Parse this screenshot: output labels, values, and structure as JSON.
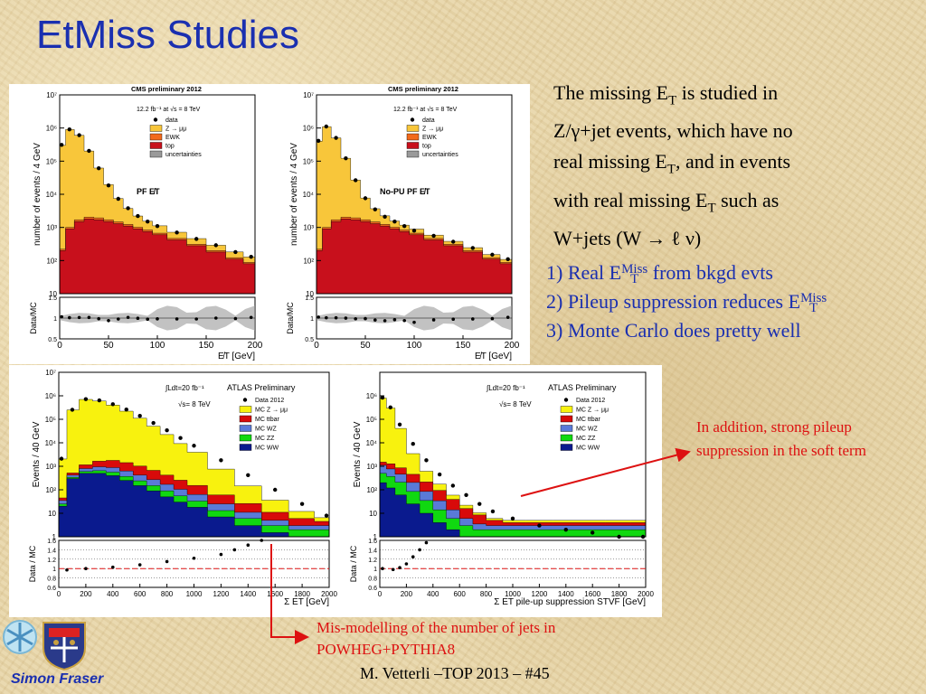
{
  "slide": {
    "title": "EtMiss Studies",
    "intro": {
      "l1a": "The missing E",
      "l1b": "T",
      "l1c": " is studied in",
      "l2": "Z/γ+jet events, which have no",
      "l3a": "real missing E",
      "l3b": "T",
      "l3c": ", and in events",
      "l4a": "with real missing E",
      "l4b": "T",
      "l4c": " such as",
      "l5": "W+jets (W → ℓ ν)"
    },
    "points": {
      "p1a": "1) Real E",
      "p1sup": "Miss",
      "p1sub": "T",
      "p1c": " from bkgd evts",
      "p2a": "2) Pileup suppression reduces E",
      "p2sup": "Miss",
      "p2sub": "T",
      "p3": "3) Monte Carlo does pretty well"
    },
    "note_top": "In addition, strong pileup suppression in the soft term",
    "note_bottom": "Mis-modelling of the number of jets in POWHEG+PYTHIA8",
    "footer": "M. Vetterli –TOP 2013 – #45",
    "author": "Simon Fraser"
  },
  "colors": {
    "title": "#1a2fb0",
    "annotation": "#dd1111",
    "cms_zmm": "#f8c63a",
    "cms_ewk": "#f26a1c",
    "cms_top": "#c8101c",
    "cms_unc": "#9a9a9a",
    "atlas_z": "#f8f20e",
    "atlas_tt": "#d80a0a",
    "atlas_wz": "#5a7ad8",
    "atlas_zz": "#10d810",
    "atlas_ww": "#0a1a8e"
  },
  "chart_data": [
    {
      "type": "area",
      "header": "CMS preliminary 2012",
      "lumi": "12.2 fb⁻¹  at  √s = 8 TeV",
      "label": "PF E̸T",
      "ylabel": "number of events / 4 GeV",
      "xlabel": "E̸T [GeV]",
      "ratio_ylabel": "Data/MC",
      "yscale": "log",
      "ylim": [
        10,
        10000000.0
      ],
      "xlim": [
        0,
        200
      ],
      "x_ticks": [
        "0",
        "50",
        "100",
        "150",
        "200"
      ],
      "y_ticks": [
        "10",
        "10²",
        "10³",
        "10⁴",
        "10⁵",
        "10⁶",
        "10⁷"
      ],
      "ratio_ylim": [
        0.5,
        1.5
      ],
      "ratio_ticks": [
        "0.5",
        "1",
        "1.5"
      ],
      "legend": [
        "data",
        "Z → μμ",
        "EWK",
        "top",
        "uncertainties"
      ],
      "x": [
        2,
        10,
        20,
        30,
        40,
        50,
        60,
        70,
        80,
        90,
        100,
        120,
        140,
        160,
        180,
        196
      ],
      "series": [
        {
          "name": "top",
          "values": [
            200,
            900,
            1500,
            1800,
            1700,
            1500,
            1300,
            1100,
            900,
            750,
            600,
            420,
            280,
            180,
            110,
            80
          ]
        },
        {
          "name": "EWK",
          "values": [
            20,
            100,
            200,
            250,
            240,
            200,
            170,
            140,
            110,
            90,
            70,
            45,
            30,
            20,
            12,
            8
          ]
        },
        {
          "name": "Z → μμ",
          "values": [
            300000,
            900000,
            600000,
            200000,
            60000,
            18000,
            6000,
            2500,
            1200,
            700,
            450,
            250,
            150,
            90,
            60,
            40
          ]
        },
        {
          "name": "data",
          "values": [
            310000,
            910000,
            610000,
            205000,
            61000,
            18500,
            7300,
            3800,
            2200,
            1500,
            1100,
            700,
            450,
            290,
            180,
            130
          ]
        }
      ]
    },
    {
      "type": "area",
      "header": "CMS preliminary 2012",
      "lumi": "12.2 fb⁻¹  at  √s = 8 TeV",
      "label": "No-PU PF E̸T",
      "ylabel": "number of events / 4 GeV",
      "xlabel": "E̸T [GeV]",
      "ratio_ylabel": "Data/MC",
      "yscale": "log",
      "ylim": [
        10,
        10000000.0
      ],
      "xlim": [
        0,
        200
      ],
      "x_ticks": [
        "0",
        "50",
        "100",
        "150",
        "200"
      ],
      "y_ticks": [
        "10",
        "10²",
        "10³",
        "10⁴",
        "10⁵",
        "10⁶",
        "10⁷"
      ],
      "ratio_ylim": [
        0.5,
        1.5
      ],
      "ratio_ticks": [
        "0.5",
        "1",
        "1.5"
      ],
      "legend": [
        "data",
        "Z → μμ",
        "EWK",
        "top",
        "uncertainties"
      ],
      "x": [
        2,
        10,
        20,
        30,
        40,
        50,
        60,
        70,
        80,
        90,
        100,
        120,
        140,
        160,
        180,
        196
      ],
      "series": [
        {
          "name": "top",
          "values": [
            200,
            900,
            1500,
            1800,
            1700,
            1500,
            1300,
            1100,
            900,
            750,
            600,
            420,
            280,
            180,
            110,
            80
          ]
        },
        {
          "name": "EWK",
          "values": [
            20,
            100,
            200,
            250,
            240,
            200,
            170,
            140,
            110,
            90,
            70,
            45,
            30,
            20,
            12,
            8
          ]
        },
        {
          "name": "Z → μμ",
          "values": [
            400000,
            1100000,
            500000,
            120000,
            25000,
            6000,
            2200,
            1000,
            550,
            330,
            220,
            120,
            70,
            45,
            30,
            20
          ]
        },
        {
          "name": "data",
          "values": [
            410000,
            1110000,
            505000,
            122000,
            26500,
            7600,
            3500,
            2100,
            1500,
            1100,
            800,
            560,
            370,
            240,
            150,
            110
          ]
        }
      ]
    },
    {
      "type": "area",
      "header": "ATLAS Preliminary",
      "lumi": "∫Ldt=20 fb⁻¹",
      "energy": "√s= 8 TeV",
      "ylabel": "Events / 40 GeV",
      "xlabel": "Σ ET [GeV]",
      "ratio_ylabel": "Data / MC",
      "yscale": "log",
      "ylim": [
        1,
        10000000.0
      ],
      "xlim": [
        0,
        2000
      ],
      "x_ticks": [
        "0",
        "200",
        "400",
        "600",
        "800",
        "1000",
        "1200",
        "1400",
        "1600",
        "1800",
        "2000"
      ],
      "y_ticks": [
        "1",
        "10",
        "10²",
        "10³",
        "10⁴",
        "10⁵",
        "10⁶",
        "10⁷"
      ],
      "ratio_ylim": [
        0.6,
        1.6
      ],
      "ratio_ticks": [
        "0.6",
        "0.8",
        "1",
        "1.2",
        "1.4",
        "1.6"
      ],
      "legend": [
        "Data 2012",
        "MC Z → μμ",
        "MC ttbar",
        "MC WZ",
        "MC ZZ",
        "MC WW"
      ],
      "x": [
        20,
        100,
        200,
        300,
        400,
        500,
        600,
        700,
        800,
        900,
        1000,
        1200,
        1400,
        1600,
        1800,
        1980
      ],
      "series": [
        {
          "name": "MC WW",
          "values": [
            20,
            300,
            500,
            500,
            400,
            250,
            150,
            90,
            50,
            30,
            18,
            7,
            3,
            1.5,
            1,
            1
          ]
        },
        {
          "name": "MC ZZ",
          "values": [
            5,
            40,
            100,
            150,
            160,
            120,
            90,
            60,
            40,
            25,
            15,
            6,
            3,
            1.5,
            1,
            1
          ]
        },
        {
          "name": "MC WZ",
          "values": [
            10,
            80,
            200,
            300,
            320,
            260,
            180,
            120,
            80,
            50,
            30,
            12,
            5,
            2,
            1,
            1
          ]
        },
        {
          "name": "MC ttbar",
          "values": [
            10,
            100,
            350,
            700,
            900,
            800,
            600,
            400,
            250,
            150,
            90,
            35,
            15,
            6,
            3,
            1.5
          ]
        },
        {
          "name": "MC Z → μμ",
          "values": [
            2000,
            250000,
            700000,
            600000,
            400000,
            220000,
            110000,
            50000,
            22000,
            9000,
            3800,
            700,
            120,
            25,
            6,
            2
          ]
        },
        {
          "name": "Data 2012",
          "values": [
            2100,
            255000,
            720000,
            640000,
            440000,
            260000,
            140000,
            70000,
            34000,
            16000,
            7500,
            1800,
            420,
            100,
            25,
            8
          ]
        }
      ],
      "ratio": {
        "x": [
          60,
          200,
          400,
          600,
          800,
          1000,
          1200,
          1300,
          1400,
          1500
        ],
        "values": [
          0.97,
          1.0,
          1.03,
          1.08,
          1.15,
          1.22,
          1.3,
          1.4,
          1.5,
          1.6
        ]
      }
    },
    {
      "type": "area",
      "header": "ATLAS Preliminary",
      "lumi": "∫Ldt=20 fb⁻¹",
      "energy": "√s= 8 TeV",
      "ylabel": "Events / 40 GeV",
      "xlabel": "Σ ET pile-up suppression STVF [GeV]",
      "ratio_ylabel": "Data / MC",
      "yscale": "log",
      "ylim": [
        1,
        10000000.0
      ],
      "xlim": [
        0,
        2000
      ],
      "x_ticks": [
        "0",
        "200",
        "400",
        "600",
        "800",
        "1000",
        "1200",
        "1400",
        "1600",
        "1800",
        "2000"
      ],
      "y_ticks": [
        "1",
        "10",
        "10²",
        "10³",
        "10⁴",
        "10⁵",
        "10⁶"
      ],
      "ratio_ylim": [
        0.6,
        1.6
      ],
      "ratio_ticks": [
        "0.6",
        "0.8",
        "1",
        "1.2",
        "1.4",
        "1.6"
      ],
      "legend": [
        "Data 2012",
        "MC Z → μμ",
        "MC ttbar",
        "MC WZ",
        "MC ZZ",
        "MC WW"
      ],
      "x": [
        20,
        80,
        150,
        250,
        350,
        450,
        550,
        650,
        750,
        850,
        1000,
        1200,
        1400,
        1600,
        1800,
        1980
      ],
      "series": [
        {
          "name": "MC WW",
          "values": [
            200,
            120,
            60,
            25,
            10,
            4,
            2,
            1,
            1,
            1,
            1,
            1,
            1,
            1,
            1,
            1
          ]
        },
        {
          "name": "MC ZZ",
          "values": [
            300,
            250,
            150,
            60,
            25,
            10,
            4,
            2,
            1,
            1,
            1,
            1,
            1,
            1,
            1,
            1
          ]
        },
        {
          "name": "MC WZ",
          "values": [
            600,
            400,
            250,
            120,
            50,
            20,
            8,
            3,
            1.5,
            1,
            1,
            1,
            1,
            1,
            1,
            1
          ]
        },
        {
          "name": "MC ttbar",
          "values": [
            400,
            500,
            400,
            250,
            130,
            60,
            25,
            10,
            5,
            2,
            1,
            1,
            1,
            1,
            1,
            1
          ]
        },
        {
          "name": "MC Z → μμ",
          "values": [
            800000,
            300000,
            40000,
            3000,
            400,
            80,
            20,
            6,
            2,
            1,
            1,
            1,
            1,
            1,
            1,
            1
          ]
        },
        {
          "name": "Data 2012",
          "values": [
            830000,
            320000,
            60000,
            9000,
            1800,
            450,
            150,
            60,
            25,
            12,
            6,
            3,
            2,
            1.5,
            1,
            1
          ]
        }
      ],
      "ratio": {
        "x": [
          20,
          100,
          150,
          200,
          250,
          300,
          350
        ],
        "values": [
          1.0,
          0.98,
          1.02,
          1.1,
          1.25,
          1.4,
          1.55
        ]
      }
    }
  ]
}
